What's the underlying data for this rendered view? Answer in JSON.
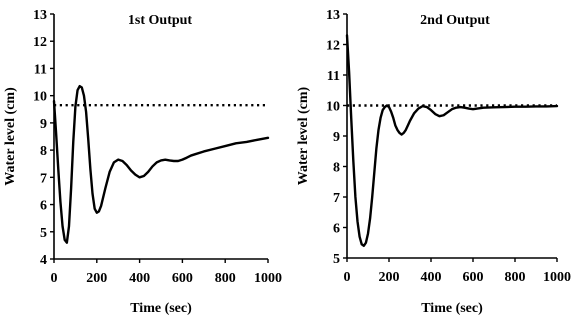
{
  "chart_data": [
    {
      "type": "line",
      "title": "1st Output",
      "xlabel": "Time (sec)",
      "ylabel": "Water level (cm)",
      "xlim": [
        0,
        1000
      ],
      "ylim": [
        4,
        13
      ],
      "xticks": [
        0,
        200,
        400,
        600,
        800,
        1000
      ],
      "yticks": [
        4,
        5,
        6,
        7,
        8,
        9,
        10,
        11,
        12,
        13
      ],
      "grid": false,
      "reference_line": 9.65,
      "series": [
        {
          "x": [
            0,
            10,
            20,
            30,
            40,
            50,
            60,
            70,
            80,
            90,
            100,
            110,
            120,
            130,
            140,
            150,
            160,
            170,
            180,
            190,
            200,
            210,
            220,
            240,
            260,
            280,
            300,
            320,
            340,
            360,
            380,
            400,
            420,
            440,
            460,
            480,
            500,
            520,
            540,
            560,
            580,
            600,
            620,
            640,
            660,
            700,
            750,
            800,
            850,
            900,
            950,
            1000
          ],
          "values": [
            9.8,
            8.6,
            7.3,
            6.1,
            5.2,
            4.7,
            4.6,
            5.2,
            6.6,
            8.3,
            9.6,
            10.2,
            10.35,
            10.3,
            10.0,
            9.4,
            8.4,
            7.3,
            6.4,
            5.85,
            5.7,
            5.75,
            5.95,
            6.6,
            7.2,
            7.55,
            7.65,
            7.6,
            7.45,
            7.25,
            7.1,
            7.0,
            7.05,
            7.2,
            7.4,
            7.55,
            7.62,
            7.65,
            7.62,
            7.6,
            7.6,
            7.65,
            7.72,
            7.8,
            7.85,
            7.95,
            8.05,
            8.15,
            8.25,
            8.3,
            8.38,
            8.45
          ]
        }
      ]
    },
    {
      "type": "line",
      "title": "2nd Output",
      "xlabel": "Time (sec)",
      "ylabel": "Water level (cm)",
      "xlim": [
        0,
        1000
      ],
      "ylim": [
        5,
        13
      ],
      "xticks": [
        0,
        200,
        400,
        600,
        800,
        1000
      ],
      "yticks": [
        5,
        6,
        7,
        8,
        9,
        10,
        11,
        12,
        13
      ],
      "grid": false,
      "reference_line": 10,
      "series": [
        {
          "x": [
            0,
            10,
            20,
            30,
            40,
            50,
            60,
            70,
            80,
            90,
            100,
            110,
            120,
            130,
            140,
            150,
            160,
            170,
            180,
            190,
            200,
            210,
            220,
            230,
            240,
            250,
            260,
            270,
            280,
            290,
            300,
            320,
            340,
            360,
            380,
            400,
            420,
            440,
            460,
            480,
            500,
            520,
            540,
            560,
            580,
            600,
            620,
            650,
            700,
            750,
            800,
            850,
            900,
            950,
            1000
          ],
          "values": [
            12.3,
            11.1,
            9.6,
            8.2,
            7.0,
            6.2,
            5.7,
            5.45,
            5.4,
            5.5,
            5.8,
            6.3,
            7.0,
            7.8,
            8.6,
            9.2,
            9.6,
            9.85,
            9.95,
            10.0,
            9.95,
            9.8,
            9.6,
            9.35,
            9.2,
            9.1,
            9.05,
            9.1,
            9.2,
            9.35,
            9.5,
            9.75,
            9.9,
            9.98,
            9.95,
            9.85,
            9.72,
            9.65,
            9.68,
            9.78,
            9.88,
            9.93,
            9.95,
            9.93,
            9.9,
            9.88,
            9.9,
            9.93,
            9.94,
            9.95,
            9.96,
            9.96,
            9.97,
            9.97,
            9.98
          ]
        }
      ]
    }
  ]
}
